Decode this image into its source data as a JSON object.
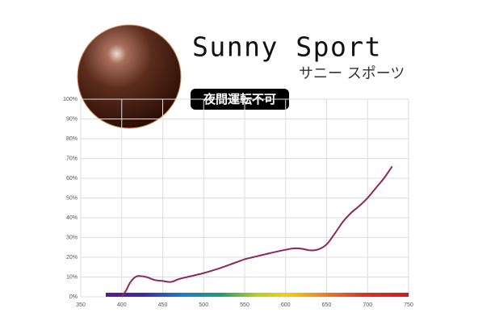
{
  "chart_data": {
    "type": "line",
    "title": "Sunny Sport",
    "subtitle": "サニー スポーツ",
    "annotation": "夜間運転不可",
    "x": [
      400,
      405,
      410,
      415,
      420,
      430,
      440,
      450,
      460,
      470,
      480,
      500,
      520,
      540,
      550,
      560,
      580,
      600,
      610,
      620,
      630,
      640,
      650,
      660,
      670,
      680,
      690,
      700,
      710,
      720,
      730
    ],
    "values": [
      0,
      3,
      7,
      9.5,
      10.5,
      10,
      8.5,
      8,
      7.5,
      9,
      10,
      12,
      14.5,
      17.5,
      19,
      20,
      22,
      23.8,
      24.5,
      24.3,
      23.5,
      24,
      26.5,
      32,
      38,
      42.5,
      46,
      50,
      55,
      60,
      66
    ],
    "color": "#8c2858",
    "xlim": [
      350,
      750
    ],
    "xticks": [
      350,
      400,
      450,
      500,
      550,
      600,
      650,
      700,
      750
    ],
    "ylim": [
      0,
      100
    ],
    "yticks": [
      {
        "value": 0,
        "label": "0%"
      },
      {
        "value": 10,
        "label": "10%"
      },
      {
        "value": 20,
        "label": "20%"
      },
      {
        "value": 30,
        "label": "30%"
      },
      {
        "value": 40,
        "label": "40%"
      },
      {
        "value": 50,
        "label": "50%"
      },
      {
        "value": 60,
        "label": "60%"
      },
      {
        "value": 70,
        "label": "70%"
      },
      {
        "value": 80,
        "label": "80%"
      },
      {
        "value": 90,
        "label": "90%"
      },
      {
        "value": 100,
        "label": "100%"
      }
    ],
    "grid": true
  }
}
